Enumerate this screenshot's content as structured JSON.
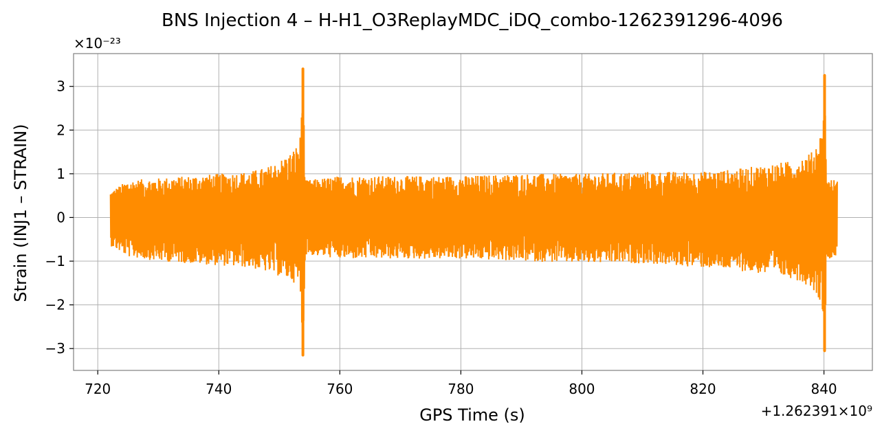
{
  "chart_data": {
    "type": "line",
    "title": "BNS Injection 4 – H-H1_O3ReplayMDC_iDQ_combo-1262391296-4096",
    "xlabel": "GPS Time (s)",
    "ylabel": "Strain (INJ1 – STRAIN)",
    "x_offset_text": "+1.262391×10⁹",
    "y_scale_text": "×10⁻²³",
    "xlim": [
      716,
      848
    ],
    "ylim": [
      -3.5,
      3.75
    ],
    "xticks": [
      720,
      740,
      760,
      780,
      800,
      820,
      840
    ],
    "yticks": [
      -3,
      -2,
      -1,
      0,
      1,
      2,
      3
    ],
    "xtick_labels": [
      "720",
      "740",
      "760",
      "780",
      "800",
      "820",
      "840"
    ],
    "ytick_labels": [
      "−3",
      "−2",
      "−1",
      "0",
      "1",
      "2",
      "3"
    ],
    "grid": true,
    "color": "#ff8c00",
    "series": [
      {
        "x_range": [
          722.1,
          842.2
        ],
        "envelope_upper": [
          [
            722.1,
            0.6
          ],
          [
            725,
            0.85
          ],
          [
            730,
            0.9
          ],
          [
            735,
            0.95
          ],
          [
            740,
            1.0
          ],
          [
            745,
            1.05
          ],
          [
            748,
            1.15
          ],
          [
            750,
            1.3
          ],
          [
            752,
            1.5
          ],
          [
            753.4,
            1.75
          ],
          [
            753.9,
            3.4
          ],
          [
            754.3,
            0.85
          ],
          [
            760,
            0.95
          ],
          [
            770,
            0.95
          ],
          [
            780,
            0.95
          ],
          [
            790,
            1.0
          ],
          [
            800,
            1.0
          ],
          [
            810,
            1.05
          ],
          [
            820,
            1.05
          ],
          [
            825,
            1.1
          ],
          [
            830,
            1.2
          ],
          [
            835,
            1.3
          ],
          [
            838,
            1.5
          ],
          [
            839.7,
            2.0
          ],
          [
            840.1,
            3.25
          ],
          [
            840.5,
            0.9
          ],
          [
            842.2,
            0.85
          ]
        ],
        "envelope_lower": [
          [
            722.1,
            -0.65
          ],
          [
            725,
            -0.9
          ],
          [
            730,
            -1.0
          ],
          [
            735,
            -1.05
          ],
          [
            740,
            -1.1
          ],
          [
            745,
            -1.15
          ],
          [
            748,
            -1.25
          ],
          [
            750,
            -1.35
          ],
          [
            752,
            -1.45
          ],
          [
            753.4,
            -1.6
          ],
          [
            753.9,
            -3.15
          ],
          [
            754.3,
            -0.85
          ],
          [
            760,
            -0.95
          ],
          [
            770,
            -0.95
          ],
          [
            780,
            -0.95
          ],
          [
            790,
            -1.0
          ],
          [
            800,
            -1.05
          ],
          [
            810,
            -1.05
          ],
          [
            820,
            -1.15
          ],
          [
            825,
            -1.2
          ],
          [
            830,
            -1.3
          ],
          [
            835,
            -1.4
          ],
          [
            838,
            -1.6
          ],
          [
            839.7,
            -2.0
          ],
          [
            840.1,
            -3.05
          ],
          [
            840.5,
            -0.95
          ],
          [
            842.2,
            -0.9
          ]
        ],
        "peaks": [
          {
            "x": 753.9,
            "y_max": 3.4,
            "y_min": -3.15
          },
          {
            "x": 840.1,
            "y_max": 3.25,
            "y_min": -3.05
          }
        ]
      }
    ]
  }
}
